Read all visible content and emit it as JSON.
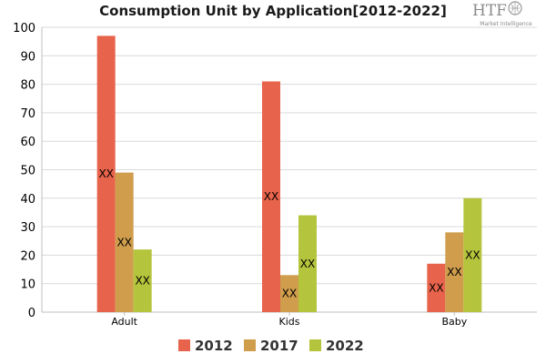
{
  "logo": {
    "text": "HTF",
    "subtext": "Market Intelligence"
  },
  "chart_data": {
    "type": "bar",
    "title": "Consumption Unit by  Application[2012-2022]",
    "categories": [
      "Adult",
      "Kids",
      "Baby"
    ],
    "series": [
      {
        "name": "2012",
        "values": [
          97,
          81,
          17
        ],
        "labels": [
          "XX",
          "XX",
          "XX"
        ],
        "color": "#e8634b"
      },
      {
        "name": "2017",
        "values": [
          49,
          13,
          28
        ],
        "labels": [
          "XX",
          "XX",
          "XX"
        ],
        "color": "#cf9d4c"
      },
      {
        "name": "2022",
        "values": [
          22,
          34,
          40
        ],
        "labels": [
          "XX",
          "XX",
          "XX"
        ],
        "color": "#b4c43c"
      }
    ],
    "yticks": [
      "0",
      "10",
      "20",
      "30",
      "40",
      "50",
      "60",
      "70",
      "80",
      "90",
      "100"
    ],
    "ylim": [
      0,
      100
    ],
    "grid": true,
    "legend_position": "bottom"
  }
}
